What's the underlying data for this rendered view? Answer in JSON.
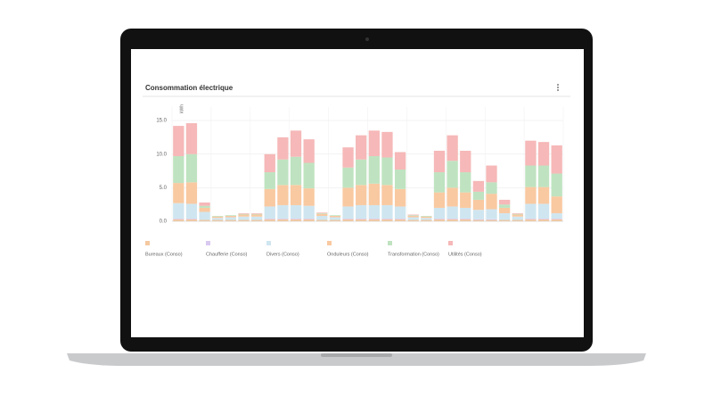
{
  "chart_data": {
    "type": "stacked_bar",
    "title": "Consommation électrique",
    "y_label": "kWh",
    "categories": [
      null,
      null,
      null,
      null,
      null,
      null,
      null,
      null,
      null,
      null,
      null,
      null,
      null,
      null,
      null,
      null,
      null,
      null,
      null,
      null,
      null,
      null,
      null,
      null,
      null,
      null,
      null,
      null,
      null,
      null
    ],
    "series": [
      {
        "name": "Bureaux (Conso)",
        "color": "#f5c9a0",
        "values": [
          0.3,
          0.3,
          0.2,
          0.2,
          0.2,
          0.2,
          0.2,
          0.3,
          0.3,
          0.3,
          0.3,
          0.2,
          0.2,
          0.3,
          0.3,
          0.3,
          0.3,
          0.3,
          0.2,
          0.2,
          0.3,
          0.3,
          0.3,
          0.2,
          0.2,
          0.2,
          0.2,
          0.3,
          0.3,
          0.3
        ]
      },
      {
        "name": "Chaufferie (Conso)",
        "color": "#d9c9f0",
        "values": [
          0.1,
          0.1,
          0,
          0,
          0,
          0,
          0,
          0.1,
          0.1,
          0.1,
          0.1,
          0,
          0,
          0.1,
          0.1,
          0.1,
          0.1,
          0.1,
          0,
          0,
          0.1,
          0.1,
          0.1,
          0.1,
          0.1,
          0,
          0,
          0.1,
          0.1,
          0.1
        ]
      },
      {
        "name": "Divers (Conso)",
        "color": "#cfe6f0",
        "values": [
          2.3,
          2.2,
          1.2,
          0.3,
          0.4,
          0.5,
          0.5,
          1.8,
          2,
          2,
          1.9,
          0.6,
          0.4,
          1.8,
          2,
          2,
          2,
          1.8,
          0.4,
          0.3,
          1.6,
          1.8,
          1.6,
          1.4,
          1.5,
          1,
          0.5,
          2.2,
          2.2,
          0.8
        ]
      },
      {
        "name": "Onduleurs (Conso)",
        "color": "#f9c9a1",
        "values": [
          3,
          3.2,
          0.6,
          0.2,
          0.2,
          0.3,
          0.3,
          2.6,
          3,
          3,
          2.6,
          0.3,
          0.2,
          2.8,
          3,
          3.2,
          3,
          2.6,
          0.2,
          0.2,
          2.3,
          2.8,
          2.3,
          1.5,
          2.3,
          0.8,
          0.3,
          2.5,
          2.5,
          2.5
        ]
      },
      {
        "name": "Transformation (Conso)",
        "color": "#bfe3c0",
        "values": [
          4,
          4.2,
          0.3,
          0.1,
          0.1,
          0.1,
          0.1,
          2.5,
          3.8,
          4.2,
          3.8,
          0.1,
          0.1,
          3,
          3.8,
          4.1,
          4.1,
          2.9,
          0.1,
          0.1,
          3,
          4,
          3,
          1.2,
          1.7,
          0.5,
          0.1,
          3.2,
          3.2,
          3.4
        ]
      },
      {
        "name": "Utilités (Conso)",
        "color": "#f6b8b8",
        "values": [
          4.5,
          4.6,
          0.5,
          0,
          0,
          0.1,
          0.1,
          2.7,
          3.3,
          3.9,
          3.5,
          0.1,
          0,
          3,
          3.6,
          3.8,
          3.8,
          2.6,
          0.1,
          0,
          3.2,
          3.8,
          3.2,
          1.6,
          2.5,
          0.7,
          0.1,
          3.7,
          3.5,
          4.2
        ]
      }
    ],
    "ylim": [
      0,
      17
    ],
    "yticks": [
      {
        "value": 0,
        "label": "0.0"
      },
      {
        "value": 5,
        "label": "5.0"
      },
      {
        "value": 10,
        "label": "10.0"
      },
      {
        "value": 15,
        "label": "15.0"
      }
    ],
    "grid": true
  }
}
